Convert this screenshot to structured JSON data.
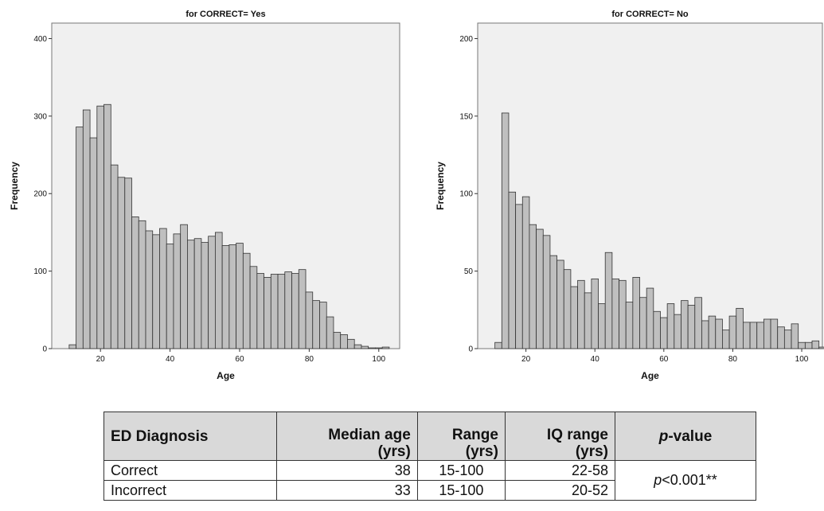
{
  "chart_data": [
    {
      "type": "bar",
      "title": "for CORRECT= Yes",
      "xlabel": "Age",
      "ylabel": "Frequency",
      "xlim": [
        6,
        106
      ],
      "ylim": [
        0,
        420
      ],
      "x_ticks": [
        20,
        40,
        60,
        80,
        100
      ],
      "y_ticks": [
        0,
        100,
        200,
        300,
        400
      ],
      "bin_start": 11,
      "bin_width": 2,
      "values": [
        5,
        286,
        308,
        272,
        313,
        315,
        237,
        221,
        220,
        170,
        165,
        152,
        147,
        155,
        135,
        148,
        160,
        140,
        142,
        137,
        145,
        150,
        133,
        134,
        136,
        123,
        106,
        97,
        92,
        96,
        96,
        99,
        97,
        102,
        73,
        62,
        60,
        41,
        21,
        18,
        12,
        5,
        3,
        1,
        1,
        2
      ],
      "grid": false,
      "bar_color": "#bfbfbf"
    },
    {
      "type": "bar",
      "title": "for CORRECT= No",
      "xlabel": "Age",
      "ylabel": "Frequency",
      "xlim": [
        6,
        106
      ],
      "ylim": [
        0,
        210
      ],
      "x_ticks": [
        20,
        40,
        60,
        80,
        100
      ],
      "y_ticks": [
        0,
        50,
        100,
        150,
        200
      ],
      "bin_start": 11,
      "bin_width": 2,
      "values": [
        4,
        152,
        101,
        93,
        98,
        80,
        77,
        73,
        60,
        57,
        51,
        40,
        44,
        36,
        45,
        29,
        62,
        45,
        44,
        30,
        46,
        33,
        39,
        24,
        20,
        29,
        22,
        31,
        28,
        33,
        18,
        21,
        19,
        12,
        21,
        26,
        17,
        17,
        17,
        19,
        19,
        14,
        12,
        16,
        4,
        4,
        5,
        1,
        0,
        1,
        1
      ],
      "grid": false,
      "bar_color": "#bfbfbf"
    }
  ],
  "table": {
    "headers": {
      "diagnosis": "ED Diagnosis",
      "median_1": "Median age",
      "median_2": "(yrs)",
      "range_1": "Range",
      "range_2": "(yrs)",
      "iq_1": "IQ range",
      "iq_2": "(yrs)",
      "p_italic": "p",
      "p_rest": "-value"
    },
    "rows": [
      {
        "diagnosis": "Correct",
        "median": "38",
        "range": "15-100",
        "iq": "22-58"
      },
      {
        "diagnosis": "Incorrect",
        "median": "33",
        "range": "15-100",
        "iq": "20-52"
      }
    ],
    "p_value_italic": "p",
    "p_value_rest": "<0.001**"
  }
}
